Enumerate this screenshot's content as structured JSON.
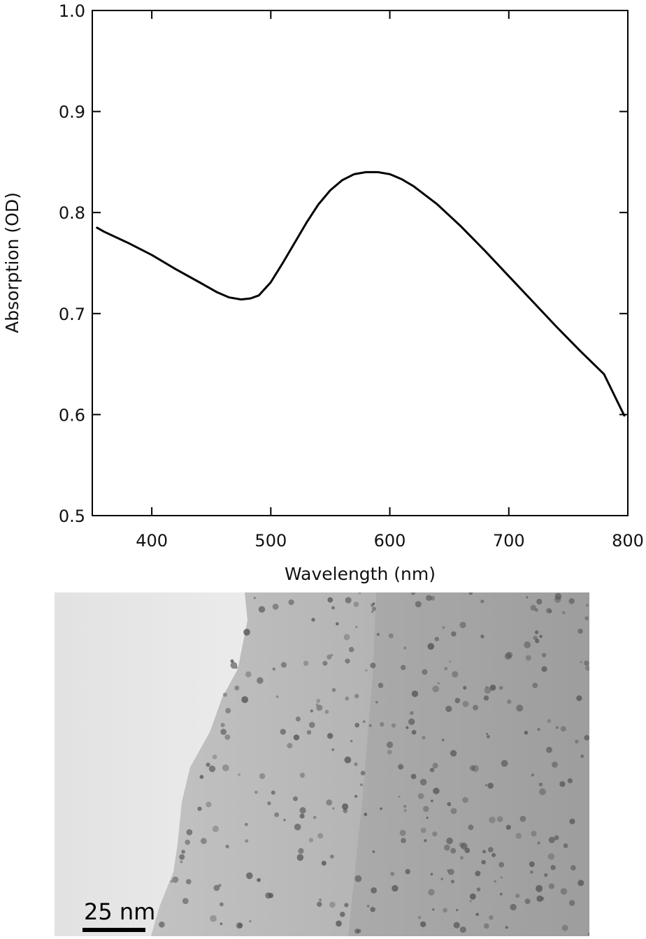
{
  "chart_data": {
    "type": "line",
    "xlabel": "Wavelength (nm)",
    "ylabel": "Absorption (OD)",
    "xlim": [
      350,
      800
    ],
    "ylim": [
      0.5,
      1.0
    ],
    "x_ticks": [
      "400",
      "500",
      "600",
      "700",
      "800"
    ],
    "y_ticks": [
      "0.5",
      "0.6",
      "0.7",
      "0.8",
      "0.9",
      "1.0"
    ],
    "grid": false,
    "series": [
      {
        "x": [
          354,
          360,
          380,
          400,
          420,
          440,
          455,
          465,
          475,
          483,
          490,
          500,
          510,
          520,
          530,
          540,
          550,
          560,
          570,
          580,
          590,
          600,
          610,
          620,
          640,
          660,
          680,
          700,
          720,
          740,
          760,
          780,
          797
        ],
        "y": [
          0.785,
          0.781,
          0.77,
          0.758,
          0.744,
          0.731,
          0.721,
          0.716,
          0.714,
          0.715,
          0.718,
          0.731,
          0.75,
          0.77,
          0.79,
          0.808,
          0.822,
          0.832,
          0.838,
          0.84,
          0.84,
          0.838,
          0.833,
          0.826,
          0.808,
          0.786,
          0.762,
          0.737,
          0.712,
          0.687,
          0.663,
          0.64,
          0.599
        ]
      }
    ]
  },
  "tem": {
    "scale_label": "25 nm"
  }
}
